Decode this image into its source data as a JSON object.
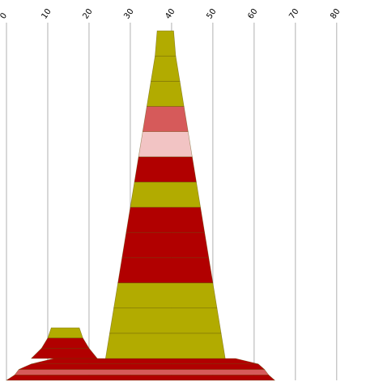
{
  "colors": {
    "olive": "#b2ab00",
    "red": "#b10000",
    "salmon": "#d65a5a",
    "pink": "#f2c4c4",
    "grid": "#b0b0b0",
    "band_stroke": "#5a4a00"
  },
  "chart_data": {
    "type": "area",
    "orientation": "horizontal",
    "title": "",
    "xlabel": "",
    "ylabel": "",
    "xlim": [
      0,
      80
    ],
    "x_ticks": [
      "0",
      "10",
      "20",
      "30",
      "40",
      "50",
      "60",
      "70",
      "80"
    ],
    "x_tick_values": [
      0,
      10,
      20,
      30,
      40,
      50,
      60,
      70,
      80
    ],
    "grid": true,
    "legend": "none",
    "stacks": [
      {
        "name": "",
        "bands": [
          {
            "left": 0,
            "right": 65,
            "color": "red"
          },
          {
            "left": 2,
            "right": 63.5,
            "color": "salmon"
          },
          {
            "left": 3,
            "right": 62.5,
            "color": "red"
          },
          {
            "left": 6,
            "right": 61,
            "color": "red"
          }
        ]
      },
      {
        "name": "",
        "bands": [
          {
            "left": 6,
            "right": 22,
            "color": "red"
          },
          {
            "left": 8.5,
            "right": 20,
            "color": "red"
          },
          {
            "left": 10,
            "right": 18.5,
            "color": "olive"
          }
        ]
      },
      {
        "name": "",
        "bands": [
          {
            "left": 24,
            "right": 53,
            "color": "olive"
          },
          {
            "left": 25,
            "right": 52,
            "color": "olive"
          },
          {
            "left": 26,
            "right": 51,
            "color": "olive"
          },
          {
            "left": 27,
            "right": 50,
            "color": "red"
          },
          {
            "left": 28,
            "right": 49,
            "color": "red"
          },
          {
            "left": 29,
            "right": 48,
            "color": "red"
          },
          {
            "left": 30,
            "right": 47,
            "color": "olive"
          },
          {
            "left": 31,
            "right": 46,
            "color": "red"
          },
          {
            "left": 32,
            "right": 45,
            "color": "pink"
          },
          {
            "left": 33,
            "right": 44,
            "color": "salmon"
          },
          {
            "left": 34,
            "right": 43,
            "color": "olive"
          },
          {
            "left": 35,
            "right": 42,
            "color": "olive"
          },
          {
            "left": 36,
            "right": 41,
            "color": "olive"
          }
        ]
      }
    ]
  }
}
